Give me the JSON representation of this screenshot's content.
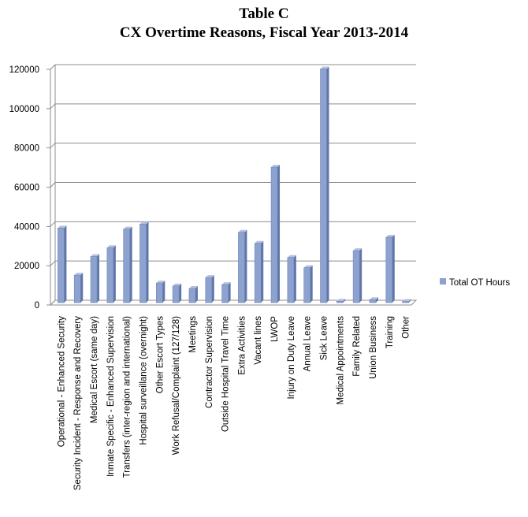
{
  "chart_data": {
    "type": "bar",
    "title": "Table C",
    "subtitle": "CX Overtime Reasons, Fiscal Year 2013-2014",
    "xlabel": "",
    "ylabel": "",
    "ylim": [
      0,
      120000
    ],
    "yticks": [
      0,
      20000,
      40000,
      60000,
      80000,
      100000,
      120000
    ],
    "grid": true,
    "legend_position": "right",
    "categories": [
      "Operational - Enhanced Security",
      "Security Incident - Response and Recovery",
      "Medical Escort (same day)",
      "Inmate Specific - Enhanced Supervision",
      "Transfers (inter-region and international)",
      "Hospital surveillance (overnight)",
      "Other Escort Types",
      "Work Refusal/Complaint (127/128)",
      "Meetings",
      "Contractor Supervision",
      "Outside Hospital Travel Time",
      "Extra Activities",
      "Vacant lines",
      "LWOP",
      "Injury on Duty Leave",
      "Annual Leave",
      "Sick Leave",
      "Medical Appointments",
      "Family Related",
      "Union Business",
      "Training",
      "Other"
    ],
    "series": [
      {
        "name": "Total OT Hours",
        "color": "#8da2cf",
        "values": [
          38000,
          14000,
          23500,
          28000,
          37500,
          40000,
          10000,
          8500,
          7200,
          12800,
          9200,
          35800,
          30200,
          69000,
          23000,
          17800,
          119000,
          700,
          26500,
          1500,
          33300,
          600
        ]
      }
    ]
  }
}
